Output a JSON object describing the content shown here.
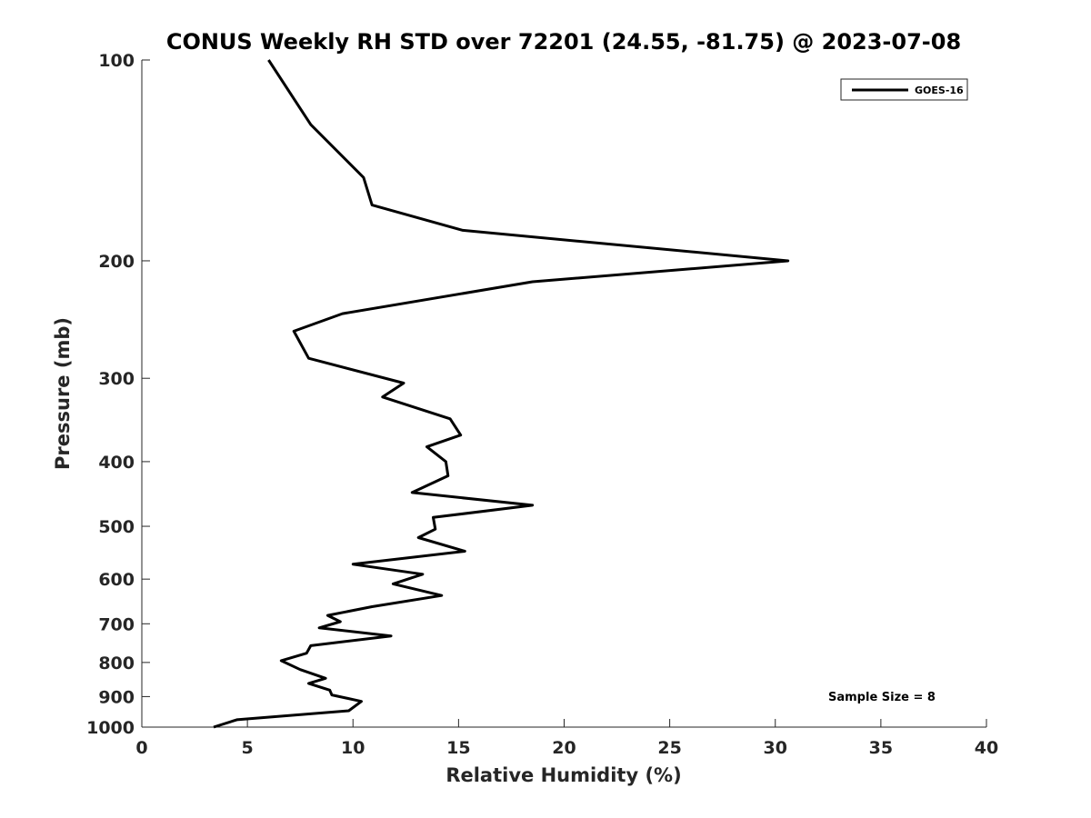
{
  "chart_data": {
    "type": "line",
    "title": "CONUS Weekly RH STD over 72201 (24.55, -81.75) @ 2023-07-08",
    "xlabel": "Relative Humidity (%)",
    "ylabel": "Pressure (mb)",
    "xlim": [
      0,
      40
    ],
    "ylim": [
      100,
      1000
    ],
    "y_scale": "log",
    "y_reversed": true,
    "x_ticks": [
      "0",
      "5",
      "10",
      "15",
      "20",
      "25",
      "30",
      "35",
      "40"
    ],
    "y_ticks": [
      "100",
      "200",
      "300",
      "400",
      "500",
      "600",
      "700",
      "800",
      "900",
      "1000"
    ],
    "grid": false,
    "legend_position": "top-right",
    "annotation": "Sample Size = 8",
    "series": [
      {
        "name": "GOES-16",
        "color": "#000000",
        "points": [
          [
            6.0,
            100
          ],
          [
            8.0,
            125
          ],
          [
            10.5,
            150
          ],
          [
            10.9,
            165
          ],
          [
            15.2,
            180
          ],
          [
            30.6,
            200
          ],
          [
            18.5,
            215
          ],
          [
            9.5,
            240
          ],
          [
            7.2,
            255
          ],
          [
            7.9,
            280
          ],
          [
            12.4,
            305
          ],
          [
            11.4,
            320
          ],
          [
            14.6,
            345
          ],
          [
            15.1,
            365
          ],
          [
            13.5,
            380
          ],
          [
            14.4,
            400
          ],
          [
            14.5,
            420
          ],
          [
            12.8,
            445
          ],
          [
            18.5,
            465
          ],
          [
            13.8,
            485
          ],
          [
            13.9,
            505
          ],
          [
            13.1,
            520
          ],
          [
            15.3,
            545
          ],
          [
            10.0,
            570
          ],
          [
            13.3,
            590
          ],
          [
            11.9,
            610
          ],
          [
            14.2,
            635
          ],
          [
            10.9,
            660
          ],
          [
            8.8,
            680
          ],
          [
            9.4,
            695
          ],
          [
            8.4,
            710
          ],
          [
            11.8,
            730
          ],
          [
            8.0,
            755
          ],
          [
            7.8,
            775
          ],
          [
            6.6,
            795
          ],
          [
            7.5,
            820
          ],
          [
            8.7,
            845
          ],
          [
            7.9,
            860
          ],
          [
            8.9,
            880
          ],
          [
            9.0,
            895
          ],
          [
            10.4,
            915
          ],
          [
            9.8,
            945
          ],
          [
            4.5,
            975
          ],
          [
            3.4,
            1000
          ]
        ]
      }
    ]
  }
}
